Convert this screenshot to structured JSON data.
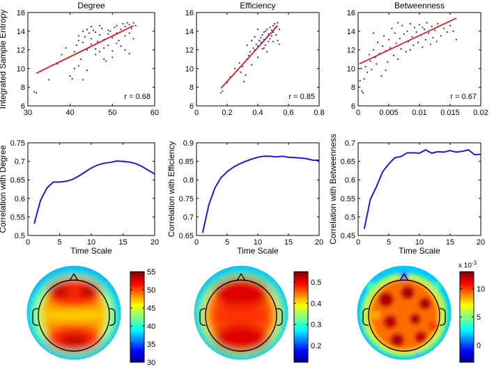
{
  "chart_data": [
    {
      "id": "scatter_degree",
      "type": "scatter",
      "title": "Degree",
      "xlabel": "",
      "ylabel": "Integrated Sample Entropy",
      "xlim": [
        30,
        60
      ],
      "ylim": [
        6,
        16
      ],
      "xticks": [
        30,
        40,
        50,
        60
      ],
      "xtick_labels": [
        "30",
        "40",
        "50",
        "60"
      ],
      "yticks": [
        6,
        8,
        10,
        12,
        14,
        16
      ],
      "ytick_labels": [
        "6",
        "8",
        "10",
        "12",
        "14",
        "16"
      ],
      "annotation": "r = 0.68",
      "fit": {
        "x": [
          32,
          55
        ],
        "y": [
          9.5,
          14.6
        ]
      },
      "points": [
        [
          31.5,
          7.5
        ],
        [
          32,
          7.4
        ],
        [
          35,
          8.8
        ],
        [
          37,
          10.5
        ],
        [
          38,
          11.5
        ],
        [
          39,
          12.2
        ],
        [
          40,
          9.2
        ],
        [
          40.5,
          8.9
        ],
        [
          41,
          11.8
        ],
        [
          41,
          10.0
        ],
        [
          41.5,
          12.5
        ],
        [
          42,
          13.5
        ],
        [
          42,
          13.0
        ],
        [
          42.5,
          11.0
        ],
        [
          43,
          12.8
        ],
        [
          43,
          14.0
        ],
        [
          43.5,
          13.4
        ],
        [
          44,
          12.0
        ],
        [
          44,
          14.2
        ],
        [
          44.5,
          13.8
        ],
        [
          45,
          12.6
        ],
        [
          45,
          13.2
        ],
        [
          45.5,
          14.1
        ],
        [
          46,
          11.5
        ],
        [
          46,
          13.9
        ],
        [
          46.5,
          12.9
        ],
        [
          47,
          13.6
        ],
        [
          47,
          11.8
        ],
        [
          47.5,
          14.3
        ],
        [
          48,
          12.2
        ],
        [
          48,
          13.1
        ],
        [
          48.5,
          10.8
        ],
        [
          49,
          13.7
        ],
        [
          49,
          12.5
        ],
        [
          49.5,
          14.0
        ],
        [
          50,
          11.9
        ],
        [
          50,
          13.3
        ],
        [
          50.5,
          14.4
        ],
        [
          51,
          12.7
        ],
        [
          51,
          14.6
        ],
        [
          51.5,
          13.0
        ],
        [
          52,
          14.2
        ],
        [
          52,
          12.4
        ],
        [
          52.5,
          14.8
        ],
        [
          53,
          13.5
        ],
        [
          53,
          14.5
        ],
        [
          53.5,
          14.9
        ],
        [
          54,
          13.8
        ],
        [
          54,
          14.7
        ],
        [
          54.5,
          14.3
        ],
        [
          55,
          14.9
        ],
        [
          55,
          13.2
        ],
        [
          55.5,
          14.6
        ],
        [
          43,
          8.8
        ],
        [
          44,
          9.8
        ],
        [
          42,
          10.3
        ],
        [
          48,
          11.0
        ],
        [
          50,
          11.2
        ],
        [
          53,
          12.0
        ],
        [
          54,
          11.6
        ],
        [
          46,
          12.1
        ],
        [
          45,
          14.5
        ],
        [
          47,
          14.6
        ],
        [
          49,
          14.1
        ],
        [
          51,
          13.8
        ]
      ]
    },
    {
      "id": "scatter_efficiency",
      "type": "scatter",
      "title": "Efficiency",
      "xlabel": "",
      "ylabel": "",
      "xlim": [
        0,
        0.8
      ],
      "ylim": [
        6,
        16
      ],
      "xticks": [
        0,
        0.2,
        0.4,
        0.6,
        0.8
      ],
      "xtick_labels": [
        "0",
        "0.2",
        "0.4",
        "0.6",
        "0.8"
      ],
      "yticks": [
        6,
        8,
        10,
        12,
        14,
        16
      ],
      "ytick_labels": [
        "6",
        "8",
        "10",
        "12",
        "14",
        "16"
      ],
      "annotation": "r = 0.85",
      "fit": {
        "x": [
          0.16,
          0.53
        ],
        "y": [
          7.9,
          14.6
        ]
      },
      "points": [
        [
          0.16,
          7.4
        ],
        [
          0.17,
          7.6
        ],
        [
          0.2,
          8.5
        ],
        [
          0.22,
          9.1
        ],
        [
          0.25,
          10.0
        ],
        [
          0.28,
          10.6
        ],
        [
          0.3,
          10.2
        ],
        [
          0.31,
          8.6
        ],
        [
          0.32,
          9.3
        ],
        [
          0.33,
          11.0
        ],
        [
          0.34,
          11.4
        ],
        [
          0.35,
          11.8
        ],
        [
          0.36,
          10.4
        ],
        [
          0.37,
          12.2
        ],
        [
          0.38,
          12.0
        ],
        [
          0.39,
          12.6
        ],
        [
          0.4,
          12.4
        ],
        [
          0.4,
          11.2
        ],
        [
          0.41,
          13.0
        ],
        [
          0.42,
          12.8
        ],
        [
          0.42,
          13.3
        ],
        [
          0.43,
          12.1
        ],
        [
          0.43,
          13.6
        ],
        [
          0.44,
          13.1
        ],
        [
          0.44,
          13.9
        ],
        [
          0.45,
          12.5
        ],
        [
          0.45,
          14.0
        ],
        [
          0.46,
          13.4
        ],
        [
          0.46,
          14.2
        ],
        [
          0.47,
          12.9
        ],
        [
          0.47,
          13.7
        ],
        [
          0.48,
          14.4
        ],
        [
          0.48,
          13.2
        ],
        [
          0.49,
          14.1
        ],
        [
          0.49,
          13.5
        ],
        [
          0.5,
          14.6
        ],
        [
          0.5,
          13.9
        ],
        [
          0.51,
          14.3
        ],
        [
          0.51,
          14.8
        ],
        [
          0.52,
          13.6
        ],
        [
          0.52,
          14.5
        ],
        [
          0.53,
          14.9
        ],
        [
          0.53,
          13.0
        ],
        [
          0.54,
          14.2
        ],
        [
          0.54,
          12.6
        ],
        [
          0.38,
          13.4
        ],
        [
          0.36,
          13.0
        ],
        [
          0.4,
          14.2
        ],
        [
          0.33,
          12.5
        ],
        [
          0.44,
          12.2
        ],
        [
          0.46,
          11.8
        ],
        [
          0.5,
          12.9
        ],
        [
          0.29,
          9.6
        ]
      ]
    },
    {
      "id": "scatter_betweenness",
      "type": "scatter",
      "title": "Betweenness",
      "xlabel": "",
      "ylabel": "",
      "xlim": [
        0,
        0.02
      ],
      "ylim": [
        6,
        16
      ],
      "xticks": [
        0,
        0.005,
        0.01,
        0.015,
        0.02
      ],
      "xtick_labels": [
        "0",
        "0.005",
        "0.01",
        "0.015",
        "0.02"
      ],
      "yticks": [
        6,
        8,
        10,
        12,
        14,
        16
      ],
      "ytick_labels": [
        "6",
        "8",
        "10",
        "12",
        "14",
        "16"
      ],
      "annotation": "r = 0.67",
      "fit": {
        "x": [
          0.0002,
          0.016
        ],
        "y": [
          10.5,
          15.4
        ]
      },
      "points": [
        [
          0.0003,
          8.7
        ],
        [
          0.0006,
          7.6
        ],
        [
          0.0008,
          7.4
        ],
        [
          0.001,
          8.9
        ],
        [
          0.0012,
          10.2
        ],
        [
          0.0015,
          9.6
        ],
        [
          0.0018,
          11.5
        ],
        [
          0.002,
          10.8
        ],
        [
          0.0022,
          9.9
        ],
        [
          0.0025,
          12.0
        ],
        [
          0.0028,
          11.2
        ],
        [
          0.003,
          10.5
        ],
        [
          0.0032,
          12.8
        ],
        [
          0.0035,
          11.6
        ],
        [
          0.0038,
          9.2
        ],
        [
          0.004,
          12.4
        ],
        [
          0.0042,
          13.5
        ],
        [
          0.0045,
          11.9
        ],
        [
          0.0048,
          10.7
        ],
        [
          0.005,
          13.1
        ],
        [
          0.0052,
          12.2
        ],
        [
          0.0055,
          14.3
        ],
        [
          0.0058,
          11.4
        ],
        [
          0.006,
          13.8
        ],
        [
          0.0062,
          12.7
        ],
        [
          0.0065,
          14.9
        ],
        [
          0.0068,
          13.2
        ],
        [
          0.007,
          12.1
        ],
        [
          0.0072,
          14.6
        ],
        [
          0.0075,
          13.7
        ],
        [
          0.0078,
          11.8
        ],
        [
          0.008,
          14.0
        ],
        [
          0.0082,
          12.9
        ],
        [
          0.0085,
          14.8
        ],
        [
          0.0088,
          13.4
        ],
        [
          0.009,
          12.5
        ],
        [
          0.0092,
          14.4
        ],
        [
          0.0095,
          13.9
        ],
        [
          0.0098,
          12.8
        ],
        [
          0.01,
          14.7
        ],
        [
          0.0102,
          13.6
        ],
        [
          0.0105,
          12.3
        ],
        [
          0.0108,
          14.2
        ],
        [
          0.011,
          13.1
        ],
        [
          0.0112,
          14.9
        ],
        [
          0.0115,
          13.8
        ],
        [
          0.0118,
          12.6
        ],
        [
          0.012,
          14.5
        ],
        [
          0.0122,
          13.3
        ],
        [
          0.0125,
          14.1
        ],
        [
          0.0128,
          12.9
        ],
        [
          0.013,
          14.8
        ],
        [
          0.0135,
          13.5
        ],
        [
          0.014,
          14.3
        ],
        [
          0.0145,
          13.9
        ],
        [
          0.015,
          14.6
        ],
        [
          0.0155,
          14.0
        ],
        [
          0.016,
          13.1
        ],
        [
          0.0005,
          10.0
        ],
        [
          0.0025,
          13.8
        ],
        [
          0.0045,
          9.8
        ],
        [
          0.0065,
          11.0
        ],
        [
          0.0085,
          12.0
        ],
        [
          0.0105,
          14.4
        ]
      ]
    },
    {
      "id": "line_degree",
      "type": "line",
      "title": "",
      "xlabel": "Time Scale",
      "ylabel": "Correlation with Degree",
      "xlim": [
        0,
        20
      ],
      "ylim": [
        0.5,
        0.75
      ],
      "xticks": [
        0,
        5,
        10,
        15,
        20
      ],
      "xtick_labels": [
        "0",
        "5",
        "10",
        "15",
        "20"
      ],
      "yticks": [
        0.5,
        0.55,
        0.6,
        0.65,
        0.7,
        0.75
      ],
      "ytick_labels": [
        "0.5",
        "0.55",
        "0.6",
        "0.65",
        "0.7",
        "0.75"
      ],
      "x": [
        1,
        2,
        3,
        4,
        5,
        6,
        7,
        8,
        9,
        10,
        11,
        12,
        13,
        14,
        15,
        16,
        17,
        18,
        19,
        20
      ],
      "values": [
        0.532,
        0.595,
        0.628,
        0.644,
        0.644,
        0.646,
        0.651,
        0.66,
        0.671,
        0.682,
        0.69,
        0.695,
        0.697,
        0.701,
        0.7,
        0.698,
        0.694,
        0.686,
        0.676,
        0.666
      ]
    },
    {
      "id": "line_efficiency",
      "type": "line",
      "title": "",
      "xlabel": "Time Scale",
      "ylabel": "Correlation with Efficiency",
      "xlim": [
        0,
        20
      ],
      "ylim": [
        0.65,
        0.9
      ],
      "xticks": [
        0,
        5,
        10,
        15,
        20
      ],
      "xtick_labels": [
        "0",
        "5",
        "10",
        "15",
        "20"
      ],
      "yticks": [
        0.65,
        0.7,
        0.75,
        0.8,
        0.85,
        0.9
      ],
      "ytick_labels": [
        "0.65",
        "0.7",
        "0.75",
        "0.8",
        "0.85",
        "0.9"
      ],
      "x": [
        1,
        2,
        3,
        4,
        5,
        6,
        7,
        8,
        9,
        10,
        11,
        12,
        13,
        14,
        15,
        16,
        17,
        18,
        19,
        20
      ],
      "values": [
        0.657,
        0.732,
        0.778,
        0.806,
        0.822,
        0.834,
        0.843,
        0.85,
        0.856,
        0.861,
        0.864,
        0.864,
        0.862,
        0.864,
        0.861,
        0.86,
        0.859,
        0.857,
        0.853,
        0.853
      ]
    },
    {
      "id": "line_betweenness",
      "type": "line",
      "title": "",
      "xlabel": "Time Scale",
      "ylabel": "Correlation with Betweenness",
      "xlim": [
        0,
        20
      ],
      "ylim": [
        0.45,
        0.7
      ],
      "xticks": [
        0,
        5,
        10,
        15,
        20
      ],
      "xtick_labels": [
        "0",
        "5",
        "10",
        "15",
        "20"
      ],
      "yticks": [
        0.45,
        0.5,
        0.55,
        0.6,
        0.65,
        0.7
      ],
      "ytick_labels": [
        "0.45",
        "0.5",
        "0.55",
        "0.6",
        "0.65",
        "0.7"
      ],
      "x": [
        1,
        2,
        3,
        4,
        5,
        6,
        7,
        8,
        9,
        10,
        11,
        12,
        13,
        14,
        15,
        16,
        17,
        18,
        19,
        20
      ],
      "values": [
        0.468,
        0.548,
        0.582,
        0.622,
        0.643,
        0.66,
        0.663,
        0.673,
        0.673,
        0.672,
        0.681,
        0.672,
        0.676,
        0.675,
        0.679,
        0.675,
        0.677,
        0.681,
        0.668,
        0.669
      ]
    },
    {
      "id": "topo_degree",
      "type": "heatmap",
      "title": "",
      "colorbar_ticks": [
        30,
        35,
        40,
        45,
        50,
        55
      ],
      "colorbar_tick_labels": [
        "30",
        "35",
        "40",
        "45",
        "50",
        "55"
      ],
      "colorbar_range": [
        30,
        55
      ],
      "exponent_label": ""
    },
    {
      "id": "topo_efficiency",
      "type": "heatmap",
      "title": "",
      "colorbar_ticks": [
        0.2,
        0.3,
        0.4,
        0.5
      ],
      "colorbar_tick_labels": [
        "0.2",
        "0.3",
        "0.4",
        "0.5"
      ],
      "colorbar_range": [
        0.12,
        0.55
      ],
      "exponent_label": ""
    },
    {
      "id": "topo_betweenness",
      "type": "heatmap",
      "title": "",
      "colorbar_ticks": [
        0,
        5,
        10
      ],
      "colorbar_tick_labels": [
        "0",
        "5",
        "10"
      ],
      "colorbar_range": [
        -3,
        13
      ],
      "exponent_label": "x 10",
      "exponent_power": "-3"
    }
  ],
  "colors": {
    "scatter_points": "#1f1fe0",
    "fit_line": "#ff0000",
    "curve": "#1a1ad8",
    "axes": "#000000"
  }
}
